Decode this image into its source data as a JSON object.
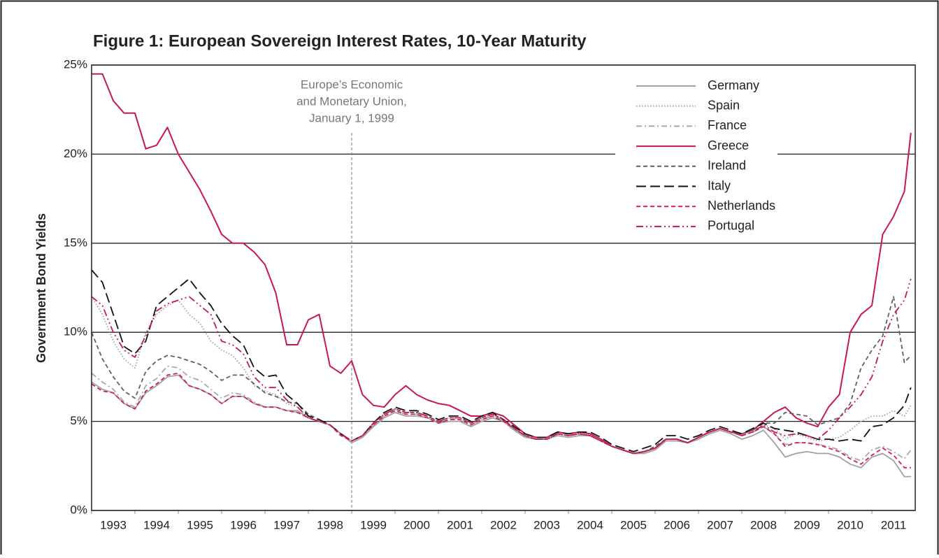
{
  "chart_data": {
    "type": "line",
    "title": "Figure 1: European Sovereign Interest Rates, 10-Year Maturity",
    "y_label": "Government Bond Yields",
    "annotation": {
      "lines": [
        "Europe’s Economic",
        "and Monetary Union,",
        "January 1, 1999"
      ],
      "x": 1999.0
    },
    "xlim": [
      1993,
      2012
    ],
    "xticks": [
      1993,
      1994,
      1995,
      1996,
      1997,
      1998,
      1999,
      2000,
      2001,
      2002,
      2003,
      2004,
      2005,
      2006,
      2007,
      2008,
      2009,
      2010,
      2011
    ],
    "ylim": [
      0,
      25
    ],
    "yticks": [
      {
        "value": 0,
        "label": "0%"
      },
      {
        "value": 5,
        "label": "5%"
      },
      {
        "value": 10,
        "label": "10%"
      },
      {
        "value": 15,
        "label": "15%"
      },
      {
        "value": 20,
        "label": "20%"
      },
      {
        "value": 25,
        "label": "25%"
      }
    ],
    "grid": true,
    "legend": "top-right",
    "x": [
      1993,
      1993.25,
      1993.5,
      1993.75,
      1994,
      1994.25,
      1994.5,
      1994.75,
      1995,
      1995.25,
      1995.5,
      1995.75,
      1996,
      1996.25,
      1996.5,
      1996.75,
      1997,
      1997.25,
      1997.5,
      1997.75,
      1998,
      1998.25,
      1998.5,
      1998.75,
      1999,
      1999.25,
      1999.5,
      1999.75,
      2000,
      2000.25,
      2000.5,
      2000.75,
      2001,
      2001.25,
      2001.5,
      2001.75,
      2002,
      2002.25,
      2002.5,
      2002.75,
      2003,
      2003.25,
      2003.5,
      2003.75,
      2004,
      2004.25,
      2004.5,
      2004.75,
      2005,
      2005.25,
      2005.5,
      2005.75,
      2006,
      2006.25,
      2006.5,
      2006.75,
      2007,
      2007.25,
      2007.5,
      2007.75,
      2008,
      2008.25,
      2008.5,
      2008.75,
      2009,
      2009.25,
      2009.5,
      2009.75,
      2010,
      2010.25,
      2010.5,
      2010.75,
      2011,
      2011.25,
      2011.5,
      2011.75,
      2011.9
    ],
    "series": [
      {
        "name": "Germany",
        "color": "#a0a0a0",
        "dash": "solid",
        "values": [
          7.2,
          6.8,
          6.6,
          6.0,
          5.7,
          6.6,
          7.0,
          7.5,
          7.6,
          7.0,
          6.8,
          6.5,
          6.0,
          6.4,
          6.4,
          6.0,
          5.8,
          5.8,
          5.6,
          5.6,
          5.2,
          5.0,
          4.8,
          4.3,
          3.8,
          4.1,
          4.7,
          5.2,
          5.5,
          5.3,
          5.3,
          5.2,
          4.9,
          5.0,
          5.0,
          4.7,
          5.0,
          5.2,
          5.0,
          4.5,
          4.1,
          4.0,
          4.0,
          4.2,
          4.1,
          4.2,
          4.2,
          3.9,
          3.6,
          3.4,
          3.2,
          3.2,
          3.4,
          3.9,
          3.9,
          3.8,
          4.0,
          4.3,
          4.5,
          4.3,
          4.0,
          4.2,
          4.5,
          3.8,
          3.0,
          3.2,
          3.3,
          3.2,
          3.2,
          3.0,
          2.6,
          2.4,
          3.0,
          3.2,
          2.8,
          1.9,
          1.9
        ]
      },
      {
        "name": "Spain",
        "color": "#a0a0a0",
        "dash": "dotted",
        "values": [
          12.0,
          11.0,
          9.5,
          8.5,
          8.0,
          10.0,
          11.0,
          11.5,
          11.8,
          11.0,
          10.5,
          9.5,
          9.0,
          8.7,
          8.0,
          7.0,
          6.7,
          6.5,
          6.0,
          5.8,
          5.2,
          5.0,
          4.8,
          4.3,
          3.9,
          4.2,
          4.9,
          5.4,
          5.7,
          5.5,
          5.5,
          5.3,
          5.0,
          5.2,
          5.2,
          4.9,
          5.2,
          5.4,
          5.1,
          4.6,
          4.2,
          4.0,
          4.0,
          4.3,
          4.2,
          4.3,
          4.2,
          3.9,
          3.6,
          3.4,
          3.2,
          3.3,
          3.5,
          4.0,
          4.0,
          3.8,
          4.1,
          4.4,
          4.6,
          4.4,
          4.2,
          4.4,
          4.8,
          4.6,
          4.0,
          4.3,
          4.1,
          3.9,
          4.0,
          4.1,
          4.5,
          5.0,
          5.3,
          5.3,
          5.6,
          5.3,
          5.9
        ]
      },
      {
        "name": "France",
        "color": "#a8a8a8",
        "dash": "dashdot",
        "values": [
          7.7,
          7.2,
          6.8,
          6.1,
          5.8,
          7.0,
          7.4,
          8.1,
          8.0,
          7.5,
          7.3,
          6.8,
          6.3,
          6.6,
          6.5,
          6.1,
          5.8,
          5.8,
          5.6,
          5.5,
          5.2,
          5.0,
          4.8,
          4.3,
          3.9,
          4.2,
          4.8,
          5.3,
          5.6,
          5.4,
          5.4,
          5.2,
          4.9,
          5.1,
          5.1,
          4.8,
          5.1,
          5.3,
          5.0,
          4.5,
          4.1,
          4.0,
          4.0,
          4.3,
          4.2,
          4.3,
          4.2,
          3.9,
          3.6,
          3.4,
          3.2,
          3.3,
          3.5,
          4.0,
          4.0,
          3.8,
          4.1,
          4.4,
          4.6,
          4.4,
          4.2,
          4.4,
          4.7,
          4.3,
          3.7,
          3.8,
          3.8,
          3.7,
          3.6,
          3.4,
          3.0,
          2.8,
          3.4,
          3.6,
          3.3,
          2.9,
          3.4
        ]
      },
      {
        "name": "Greece",
        "color": "#c8184a",
        "dash": "solid",
        "values": [
          24.5,
          24.5,
          23.0,
          22.3,
          22.3,
          20.3,
          20.5,
          21.5,
          20.0,
          19.0,
          18.0,
          16.8,
          15.5,
          15.0,
          15.0,
          14.5,
          13.8,
          12.2,
          9.3,
          9.3,
          10.7,
          11.0,
          8.1,
          7.7,
          8.4,
          6.5,
          5.9,
          5.8,
          6.5,
          7.0,
          6.5,
          6.2,
          6.0,
          5.9,
          5.6,
          5.3,
          5.3,
          5.5,
          5.3,
          4.8,
          4.3,
          4.1,
          4.1,
          4.4,
          4.3,
          4.4,
          4.3,
          4.0,
          3.6,
          3.4,
          3.2,
          3.3,
          3.5,
          4.0,
          4.0,
          3.8,
          4.1,
          4.4,
          4.6,
          4.4,
          4.3,
          4.5,
          5.0,
          5.5,
          5.8,
          5.2,
          4.9,
          4.7,
          5.8,
          6.5,
          10.0,
          11.0,
          11.5,
          15.5,
          16.5,
          17.9,
          21.2
        ]
      },
      {
        "name": "Ireland",
        "color": "#606060",
        "dash": "dashed",
        "values": [
          10.0,
          8.5,
          7.5,
          6.7,
          6.3,
          7.8,
          8.4,
          8.7,
          8.6,
          8.4,
          8.2,
          7.8,
          7.3,
          7.6,
          7.6,
          7.1,
          6.6,
          6.4,
          6.1,
          6.0,
          5.4,
          5.1,
          4.8,
          4.3,
          3.9,
          4.2,
          4.9,
          5.4,
          5.7,
          5.5,
          5.5,
          5.3,
          5.0,
          5.2,
          5.2,
          4.9,
          5.2,
          5.4,
          5.1,
          4.6,
          4.2,
          4.0,
          4.0,
          4.3,
          4.2,
          4.3,
          4.2,
          3.9,
          3.6,
          3.4,
          3.2,
          3.3,
          3.6,
          4.0,
          4.0,
          3.8,
          4.1,
          4.4,
          4.6,
          4.4,
          4.3,
          4.5,
          4.9,
          4.9,
          5.5,
          5.4,
          5.3,
          4.8,
          5.0,
          5.2,
          6.0,
          8.0,
          9.0,
          9.8,
          12.0,
          8.3,
          8.7
        ]
      },
      {
        "name": "Italy",
        "color": "#111111",
        "dash": "longdash",
        "values": [
          13.5,
          12.8,
          11.0,
          9.2,
          8.8,
          9.5,
          11.5,
          12.0,
          12.5,
          13.0,
          12.2,
          11.5,
          10.5,
          9.8,
          9.3,
          8.0,
          7.5,
          7.6,
          6.5,
          6.0,
          5.3,
          5.1,
          4.8,
          4.3,
          3.9,
          4.2,
          4.9,
          5.5,
          5.8,
          5.6,
          5.6,
          5.4,
          5.1,
          5.3,
          5.3,
          5.0,
          5.3,
          5.5,
          5.1,
          4.7,
          4.3,
          4.1,
          4.1,
          4.4,
          4.3,
          4.4,
          4.4,
          4.1,
          3.7,
          3.5,
          3.3,
          3.5,
          3.7,
          4.2,
          4.2,
          4.0,
          4.2,
          4.5,
          4.7,
          4.5,
          4.3,
          4.6,
          4.9,
          4.6,
          4.5,
          4.4,
          4.2,
          4.0,
          4.0,
          3.9,
          4.0,
          3.9,
          4.7,
          4.8,
          5.2,
          5.9,
          6.9
        ]
      },
      {
        "name": "Netherlands",
        "color": "#d01c5a",
        "dash": "dashed",
        "values": [
          7.1,
          6.7,
          6.6,
          6.0,
          5.7,
          6.7,
          7.1,
          7.6,
          7.7,
          7.0,
          6.8,
          6.5,
          6.0,
          6.4,
          6.4,
          6.0,
          5.8,
          5.8,
          5.6,
          5.5,
          5.2,
          5.0,
          4.8,
          4.2,
          3.9,
          4.2,
          4.8,
          5.3,
          5.6,
          5.4,
          5.4,
          5.2,
          4.9,
          5.1,
          5.1,
          4.8,
          5.1,
          5.3,
          5.0,
          4.6,
          4.2,
          4.0,
          4.0,
          4.3,
          4.2,
          4.3,
          4.2,
          3.9,
          3.6,
          3.4,
          3.2,
          3.3,
          3.5,
          4.0,
          4.0,
          3.8,
          4.1,
          4.4,
          4.6,
          4.4,
          4.2,
          4.4,
          4.7,
          4.3,
          3.6,
          3.8,
          3.8,
          3.7,
          3.5,
          3.3,
          2.9,
          2.6,
          3.1,
          3.5,
          3.1,
          2.4,
          2.4
        ]
      },
      {
        "name": "Portugal",
        "color": "#c8184a",
        "dash": "dashdotdot",
        "values": [
          12.0,
          11.5,
          10.0,
          9.0,
          8.6,
          9.8,
          11.2,
          11.6,
          11.8,
          12.0,
          11.5,
          11.0,
          9.5,
          9.3,
          8.8,
          7.5,
          6.9,
          6.9,
          6.2,
          5.8,
          5.2,
          5.0,
          4.8,
          4.3,
          3.9,
          4.2,
          4.9,
          5.4,
          5.7,
          5.5,
          5.5,
          5.3,
          5.0,
          5.2,
          5.2,
          4.9,
          5.2,
          5.4,
          5.1,
          4.6,
          4.2,
          4.0,
          4.0,
          4.3,
          4.2,
          4.3,
          4.2,
          3.9,
          3.6,
          3.4,
          3.2,
          3.3,
          3.5,
          4.0,
          4.0,
          3.8,
          4.1,
          4.4,
          4.6,
          4.4,
          4.2,
          4.4,
          4.8,
          4.4,
          4.2,
          4.3,
          4.2,
          4.0,
          4.5,
          5.2,
          5.8,
          6.5,
          7.5,
          9.5,
          11.0,
          11.8,
          13.0
        ]
      }
    ]
  }
}
